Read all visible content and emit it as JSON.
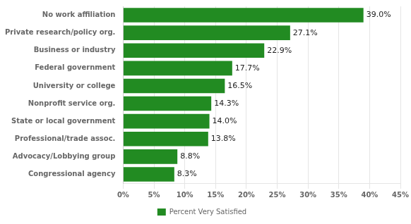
{
  "chart_data": {
    "type": "bar",
    "orientation": "horizontal",
    "categories": [
      "Congressional agency",
      "Advocacy/Lobbying group",
      "Professional/trade assoc.",
      "State or local government",
      "Nonprofit service org.",
      "University or college",
      "Federal government",
      "Business or industry",
      "Private research/policy org.",
      "No work affiliation"
    ],
    "series": [
      {
        "name": "Percent Very Satisfied",
        "color": "#228B22",
        "values": [
          8.3,
          8.8,
          13.8,
          14.0,
          14.3,
          16.5,
          17.7,
          22.9,
          27.1,
          39.0
        ],
        "value_labels": [
          "8.3%",
          "8.8%",
          "13.8%",
          "14.0%",
          "14.3%",
          "16.5%",
          "17.7%",
          "22.9%",
          "27.1%",
          "39.0%"
        ]
      }
    ],
    "xlim": [
      0,
      45
    ],
    "xticks": [
      {
        "value": 0,
        "label": "0%"
      },
      {
        "value": 5,
        "label": "5%"
      },
      {
        "value": 10,
        "label": "10%"
      },
      {
        "value": 15,
        "label": "15%"
      },
      {
        "value": 20,
        "label": "20%"
      },
      {
        "value": 25,
        "label": "25%"
      },
      {
        "value": 30,
        "label": "30%"
      },
      {
        "value": 35,
        "label": "35%"
      },
      {
        "value": 40,
        "label": "40%"
      },
      {
        "value": 45,
        "label": "45%"
      }
    ],
    "grid": true,
    "data_labels": true,
    "legend": "bottom"
  }
}
